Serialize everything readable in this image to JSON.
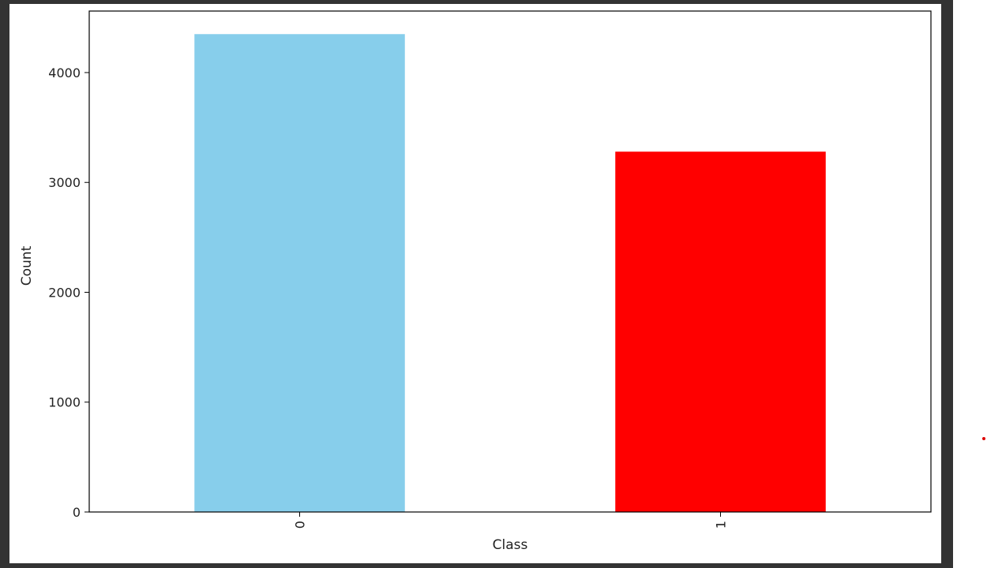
{
  "theme": {
    "frame_color": "#333333",
    "page_bg": "#ffffff",
    "axis_color": "#000000",
    "text_color": "#222222",
    "cursor_color": "#dd0000"
  },
  "chart_data": {
    "type": "bar",
    "title": "",
    "xlabel": "Class",
    "ylabel": "Count",
    "categories": [
      "0",
      "1"
    ],
    "values": [
      4350,
      3280
    ],
    "colors": [
      "#87ceeb",
      "#ff0000"
    ],
    "ylim": [
      0,
      4560
    ],
    "yticks": [
      0,
      1000,
      2000,
      3000,
      4000
    ],
    "ytick_labels": [
      "0",
      "1000",
      "2000",
      "3000",
      "4000"
    ],
    "grid": false,
    "legend": "none",
    "xtick_rotation": 90
  }
}
